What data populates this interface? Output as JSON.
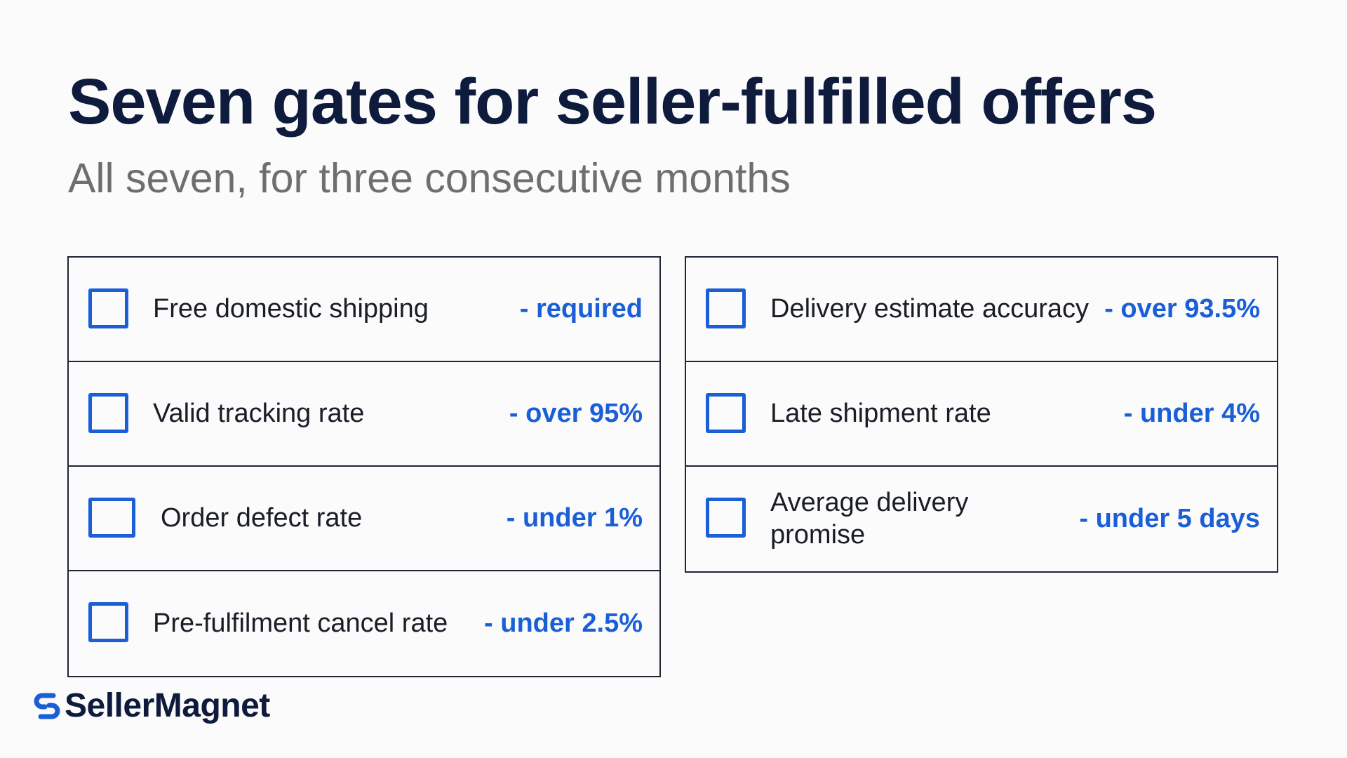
{
  "title": "Seven gates for seller-fulfilled offers",
  "subtitle": "All seven, for three consecutive months",
  "accent_color": "#1a5fd6",
  "left_column": [
    {
      "label": "Free domestic shipping",
      "value": "- required"
    },
    {
      "label": "Valid tracking rate",
      "value": "- over 95%"
    },
    {
      "label": "Order defect rate",
      "value": "- under 1%"
    },
    {
      "label": "Pre-fulfilment cancel rate",
      "value": "- under 2.5%"
    }
  ],
  "right_column": [
    {
      "label": "Delivery estimate accuracy",
      "value": "- over 93.5%"
    },
    {
      "label": "Late shipment rate",
      "value": "- under 4%"
    },
    {
      "label": "Average delivery promise",
      "value": "- under 5 days"
    }
  ],
  "logo": {
    "text": "SellerMagnet",
    "icon": "s-link-logo-icon"
  }
}
